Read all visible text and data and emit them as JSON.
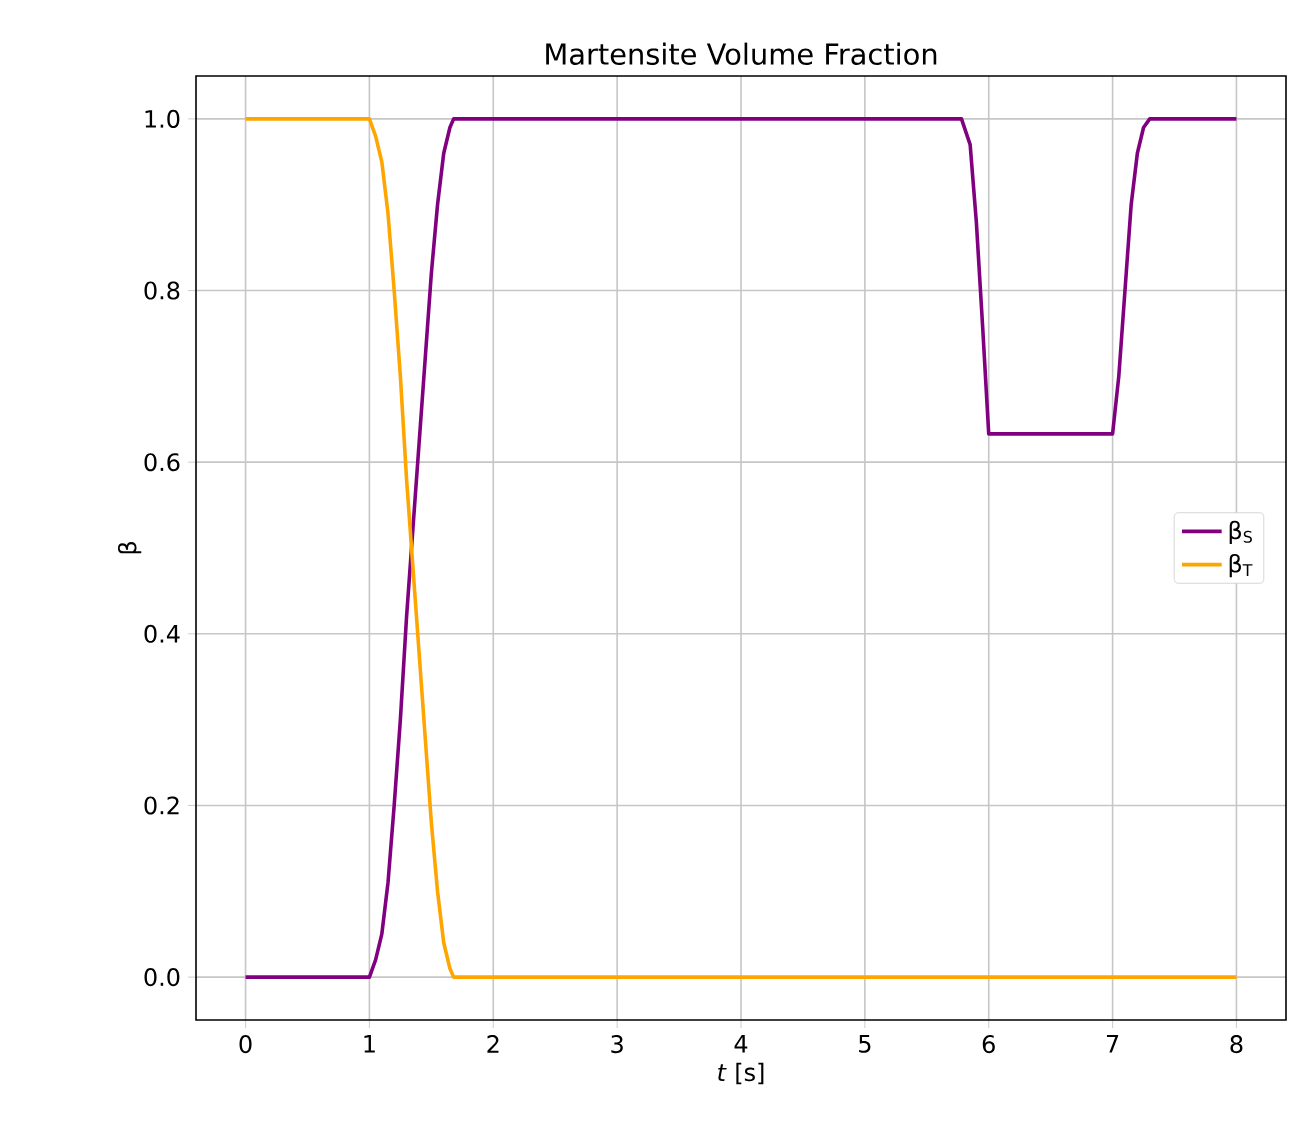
{
  "chart_data": {
    "type": "line",
    "title": "Martensite Volume Fraction",
    "xlabel": "*t* [s]",
    "ylabel": "β",
    "xlim": [
      -0.4,
      8.4
    ],
    "ylim": [
      -0.05,
      1.05
    ],
    "xticks": [
      0,
      1,
      2,
      3,
      4,
      5,
      6,
      7,
      8
    ],
    "yticks": [
      {
        "value": 0,
        "label": "0.0"
      },
      {
        "value": 0.2,
        "label": "0.2"
      },
      {
        "value": 0.4,
        "label": "0.4"
      },
      {
        "value": 0.6,
        "label": "0.6"
      },
      {
        "value": 0.8,
        "label": "0.8"
      },
      {
        "value": 1,
        "label": "1.0"
      }
    ],
    "grid": true,
    "legend": "right",
    "line_style": "solid",
    "series": [
      {
        "name": "β$_{S}$",
        "color": "#800080",
        "x": [
          0,
          1,
          1.05,
          1.1,
          1.15,
          1.2,
          1.25,
          1.3,
          1.35,
          1.4,
          1.45,
          1.5,
          1.55,
          1.6,
          1.65,
          1.68,
          5.78,
          5.85,
          5.9,
          5.95,
          6.0,
          7.0,
          7.05,
          7.1,
          7.15,
          7.2,
          7.25,
          7.3,
          8
        ],
        "values": [
          0,
          0,
          0.02,
          0.05,
          0.11,
          0.2,
          0.3,
          0.42,
          0.52,
          0.62,
          0.72,
          0.82,
          0.9,
          0.96,
          0.99,
          1,
          1,
          0.97,
          0.88,
          0.76,
          0.633,
          0.633,
          0.7,
          0.8,
          0.9,
          0.96,
          0.99,
          1,
          1
        ]
      },
      {
        "name": "β$_{T}$",
        "color": "#ffa500",
        "x": [
          0,
          1,
          1.05,
          1.1,
          1.15,
          1.2,
          1.25,
          1.3,
          1.35,
          1.4,
          1.45,
          1.5,
          1.55,
          1.6,
          1.65,
          1.68,
          8
        ],
        "values": [
          1,
          1,
          0.98,
          0.95,
          0.89,
          0.8,
          0.7,
          0.58,
          0.48,
          0.38,
          0.28,
          0.18,
          0.1,
          0.04,
          0.01,
          0,
          0
        ]
      }
    ]
  }
}
